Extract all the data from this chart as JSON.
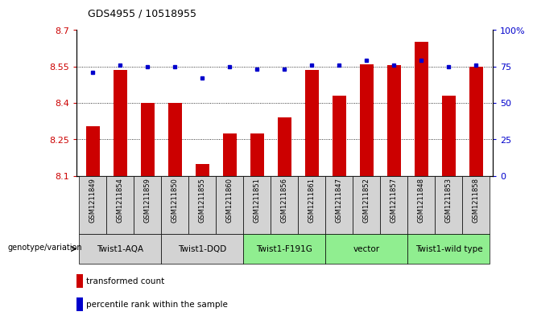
{
  "title": "GDS4955 / 10518955",
  "samples": [
    "GSM1211849",
    "GSM1211854",
    "GSM1211859",
    "GSM1211850",
    "GSM1211855",
    "GSM1211860",
    "GSM1211851",
    "GSM1211856",
    "GSM1211861",
    "GSM1211847",
    "GSM1211852",
    "GSM1211857",
    "GSM1211848",
    "GSM1211853",
    "GSM1211858"
  ],
  "bar_values": [
    8.305,
    8.535,
    8.4,
    8.4,
    8.15,
    8.275,
    8.275,
    8.34,
    8.535,
    8.43,
    8.56,
    8.555,
    8.65,
    8.43,
    8.55
  ],
  "dot_values": [
    71,
    76,
    75,
    75,
    67,
    75,
    73,
    73,
    76,
    76,
    79,
    76,
    79,
    75,
    76
  ],
  "ylim_left": [
    8.1,
    8.7
  ],
  "ylim_right": [
    0,
    100
  ],
  "yticks_left": [
    8.1,
    8.25,
    8.4,
    8.55,
    8.7
  ],
  "yticks_right": [
    0,
    25,
    50,
    75,
    100
  ],
  "ytick_labels_right": [
    "0",
    "25",
    "50",
    "75",
    "100%"
  ],
  "ytick_labels_left": [
    "8.1",
    "8.25",
    "8.4",
    "8.55",
    "8.7"
  ],
  "groups": [
    {
      "label": "Twist1-AQA",
      "start": 0,
      "end": 3,
      "color": "#d3d3d3"
    },
    {
      "label": "Twist1-DQD",
      "start": 3,
      "end": 6,
      "color": "#d3d3d3"
    },
    {
      "label": "Twist1-F191G",
      "start": 6,
      "end": 9,
      "color": "#90ee90"
    },
    {
      "label": "vector",
      "start": 9,
      "end": 12,
      "color": "#90ee90"
    },
    {
      "label": "Twist1-wild type",
      "start": 12,
      "end": 15,
      "color": "#90ee90"
    }
  ],
  "bar_color": "#cc0000",
  "dot_color": "#0000cc",
  "grid_color": "#000000",
  "legend_items": [
    {
      "label": "transformed count",
      "color": "#cc0000"
    },
    {
      "label": "percentile rank within the sample",
      "color": "#0000cc"
    }
  ],
  "sample_bg_color": "#d3d3d3",
  "genotype_label": "genotype/variation"
}
